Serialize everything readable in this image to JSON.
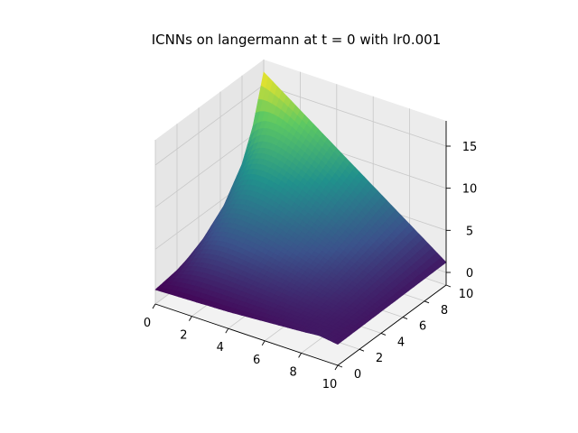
{
  "chart_data": {
    "type": "surface3d",
    "title": "ICNNs on langermann at t = 0 with lr0.001",
    "xlabel": "",
    "ylabel": "",
    "zlabel": "",
    "x_ticks": [
      "0",
      "2",
      "4",
      "6",
      "8",
      "10"
    ],
    "y_ticks": [
      "0",
      "2",
      "4",
      "6",
      "8",
      "10"
    ],
    "z_ticks": [
      "0",
      "5",
      "10",
      "15"
    ],
    "xlim": [
      0,
      10
    ],
    "ylim": [
      0,
      10
    ],
    "zlim": [
      -1.5,
      18
    ],
    "grid": true,
    "colormap": "viridis",
    "colormap_stops": [
      "#440154",
      "#3b528b",
      "#21918c",
      "#5ec962",
      "#fde725"
    ],
    "z_corner_values": {
      "x0_y0": 0.2,
      "x10_y0": 1.0,
      "x0_y10": 16.5,
      "x10_y10": 1.2
    },
    "x_edge_profile_y0": [
      [
        0,
        0.2
      ],
      [
        2,
        0.35
      ],
      [
        4,
        0.5
      ],
      [
        6,
        0.8
      ],
      [
        8,
        1.1
      ],
      [
        9,
        1.3
      ],
      [
        10,
        1.0
      ]
    ],
    "y_edge_profile_x0": [
      [
        0,
        0.2
      ],
      [
        2,
        0.6
      ],
      [
        4,
        1.5
      ],
      [
        6,
        3.5
      ],
      [
        8,
        7.5
      ],
      [
        9,
        11.0
      ],
      [
        10,
        16.5
      ]
    ],
    "peak": {
      "x": 0,
      "y": 10,
      "z": 16.5
    }
  }
}
